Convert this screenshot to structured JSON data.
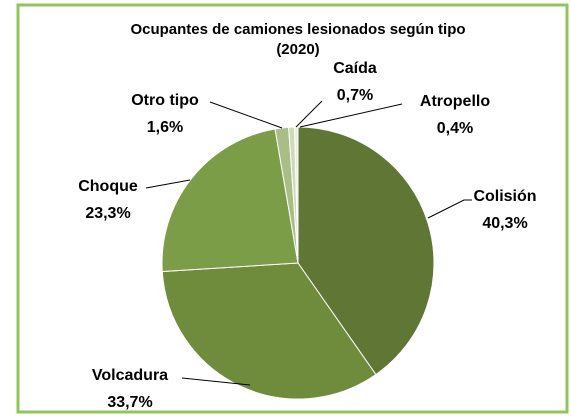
{
  "chart_data": {
    "type": "pie",
    "title": [
      "Ocupantes de camiones lesionados según tipo",
      "(2020)"
    ],
    "categories": [
      "Colisión",
      "Volcadura",
      "Choque",
      "Otro tipo",
      "Caída",
      "Atropello"
    ],
    "values": [
      40.3,
      33.7,
      23.3,
      1.6,
      0.7,
      0.4
    ],
    "value_labels": [
      "40,3%",
      "33,7%",
      "23,3%",
      "1,6%",
      "0,7%",
      "0,4%"
    ],
    "colors": [
      "#5f7634",
      "#6f8c3d",
      "#7c9d47",
      "#a7be87",
      "#cddbb9",
      "#e8eedd"
    ]
  }
}
